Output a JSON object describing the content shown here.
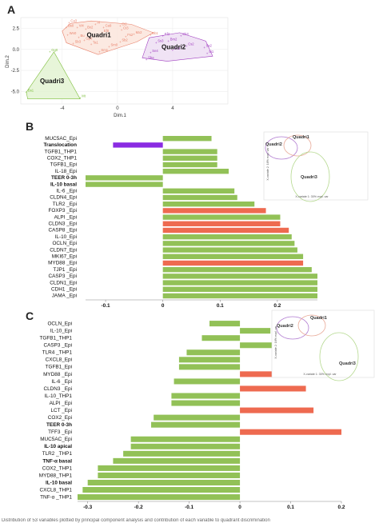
{
  "panel_labels": {
    "a": "A",
    "b": "B",
    "c": "C"
  },
  "caption": "Distribution of 53 variables plotted by principal component analysis and contribution of each variable to quadrant discrimination",
  "chart_data": [
    {
      "type": "scatter",
      "panel": "A",
      "xlabel": "Dim.1",
      "ylabel": "Dim.2",
      "xticks": [
        "-4",
        "0",
        "4"
      ],
      "yticks": [
        "2.5",
        "0.0",
        "-2.5",
        "-5.0"
      ],
      "xlim": [
        -7,
        8
      ],
      "ylim": [
        -6.5,
        3.8
      ],
      "groups": [
        {
          "name": "Quadri1",
          "color": "#e8836d",
          "fill": "#fbe3da",
          "hull": [
            [
              -3.4,
              3.1
            ],
            [
              -1.9,
              3.4
            ],
            [
              1.0,
              3.0
            ],
            [
              2.6,
              2.0
            ],
            [
              1.4,
              0.9
            ],
            [
              -1.4,
              -0.6
            ],
            [
              -3.7,
              0.8
            ],
            [
              -4.0,
              2.2
            ]
          ],
          "points": [
            [
              -3.5,
              3.2,
              "Ca3"
            ],
            [
              -3.7,
              2.6,
              "Bs0"
            ],
            [
              -2.9,
              2.6,
              "Vi4"
            ],
            [
              -2.3,
              2.4,
              "Bx2"
            ],
            [
              -1.6,
              3.0,
              "Ai"
            ],
            [
              -1.0,
              2.6,
              "Ca9"
            ],
            [
              0.2,
              2.8,
              "Ci2"
            ],
            [
              0.3,
              2.3,
              "Ct3"
            ],
            [
              -1.1,
              2.0,
              "Ef0"
            ],
            [
              -3.6,
              1.7,
              "Wn0"
            ],
            [
              -2.8,
              1.4,
              "Bu"
            ],
            [
              -2.4,
              1.1,
              "Gp0"
            ],
            [
              -3.2,
              0.7,
              "Sb3"
            ],
            [
              -1.9,
              0.6,
              "Ta1"
            ],
            [
              1.2,
              1.8,
              "Mx2"
            ],
            [
              2.4,
              1.7,
              "Bb1"
            ],
            [
              0.6,
              1.5,
              "Fs2"
            ],
            [
              0.2,
              0.9,
              "Sb2"
            ],
            [
              -0.6,
              0.3,
              "Sm0"
            ],
            [
              -1.3,
              -0.3,
              "Sm1"
            ]
          ]
        },
        {
          "name": "Quadri2",
          "color": "#a03ec0",
          "fill": "#ecdcf3",
          "hull": [
            [
              2.3,
              1.4
            ],
            [
              4.5,
              2.0
            ],
            [
              6.4,
              1.0
            ],
            [
              6.9,
              -0.8
            ],
            [
              3.6,
              -1.4
            ],
            [
              1.8,
              -1.0
            ]
          ],
          "points": [
            [
              3.3,
              1.6,
              "Ef3"
            ],
            [
              4.6,
              1.6,
              "Ck3"
            ],
            [
              3.7,
              1.0,
              "Bm2"
            ],
            [
              2.8,
              0.8,
              "Ss3"
            ],
            [
              5.0,
              0.4,
              "Cs2"
            ],
            [
              6.3,
              0.2,
              "Ss2"
            ],
            [
              4.0,
              -0.1,
              "Sk3"
            ],
            [
              2.4,
              -0.4,
              "Se4"
            ],
            [
              6.5,
              -0.5,
              "Si1"
            ],
            [
              2.1,
              -1.2,
              "Sha"
            ]
          ]
        },
        {
          "name": "Quadri3",
          "color": "#7fbf3f",
          "fill": "#e1f2cf",
          "hull": [
            [
              -6.6,
              -5.1
            ],
            [
              -4.6,
              -0.3
            ],
            [
              -2.7,
              -5.9
            ],
            [
              -6.5,
              -5.9
            ]
          ],
          "points": [
            [
              -4.9,
              -0.3,
              "Gg0"
            ],
            [
              -6.6,
              -5.1,
              "Bs1"
            ],
            [
              -2.7,
              -5.8,
              "Mt"
            ]
          ]
        }
      ]
    },
    {
      "type": "bar",
      "panel": "B",
      "orientation": "horizontal",
      "categories": [
        "MUC5AC_Epi",
        "Translocation",
        "TGFB1_THP1",
        "COX2_THP1",
        "TGFB1_Epi",
        "IL-18_Epi",
        "TEER 0-3h",
        "IL-10 basal",
        "IL-6 _Epi",
        "CLDN4_Epi",
        "TLR2 _Epi",
        "FOXP3 _Epi",
        "ALPI _Epi",
        "CLDN3 _Epi",
        "CASP8 _Epi",
        "IL-10_Epi",
        "OCLN_Epi",
        "CLDN7_Epi",
        "MKI67_Epi",
        "MYD88 _Epi",
        "TJP1 _Epi",
        "CASP3 _Epi",
        "CLDN1_Epi",
        "CDH1 _Epi",
        "JAMA _Epi"
      ],
      "bold": [
        "Translocation",
        "TEER 0-3h",
        "IL-10 basal"
      ],
      "values": [
        0.085,
        -0.087,
        0.095,
        0.095,
        0.095,
        0.115,
        -0.135,
        -0.135,
        0.125,
        0.13,
        0.16,
        0.18,
        0.205,
        0.205,
        0.22,
        0.225,
        0.23,
        0.235,
        0.245,
        0.245,
        0.26,
        0.27,
        0.27,
        0.27,
        0.27
      ],
      "colors": [
        "#92c157",
        "#8a2be2",
        "#92c157",
        "#92c157",
        "#92c157",
        "#92c157",
        "#92c157",
        "#92c157",
        "#92c157",
        "#92c157",
        "#92c157",
        "#ee6a50",
        "#92c157",
        "#ee6a50",
        "#ee6a50",
        "#92c157",
        "#92c157",
        "#92c157",
        "#92c157",
        "#ee6a50",
        "#92c157",
        "#92c157",
        "#92c157",
        "#92c157",
        "#92c157"
      ],
      "xticks": [
        "-0.1",
        "0",
        "0.1",
        "0.2"
      ],
      "xlim": [
        -0.135,
        0.27
      ]
    },
    {
      "type": "bar",
      "panel": "C",
      "orientation": "horizontal",
      "categories": [
        "OCLN_Epi",
        "IL-10_Epi",
        "TGFB1_THP1",
        "CASP3 _Epi",
        "TLR4 _THP1",
        "CXCL8_Epi",
        "TGFB1_Epi",
        "MYD88 _Epi",
        "IL-6 _Epi",
        "CLDN3 _Epi",
        "IL-10_THP1",
        "ALPI _Epi",
        "LCT _Epi",
        "COX2_Epi",
        "TEER 0-3h",
        "TFF3 _Epi",
        "MUC5AC_Epi",
        "IL-10 apical",
        "TLR2 _THP1",
        "TNF-α basal",
        "COX2_THP1",
        "MYD88_THP1",
        "IL-10 basal",
        "CXCL8_THP1",
        "TNF-α _THP1"
      ],
      "bold": [
        "TEER 0-3h",
        "IL-10 apical",
        "TNF-α basal",
        "IL-10 basal"
      ],
      "values": [
        -0.06,
        0.06,
        -0.075,
        0.075,
        -0.105,
        -0.12,
        -0.12,
        0.125,
        -0.13,
        0.13,
        -0.135,
        -0.135,
        0.145,
        -0.17,
        -0.175,
        0.2,
        -0.215,
        -0.215,
        -0.23,
        -0.25,
        -0.28,
        -0.28,
        -0.3,
        -0.31,
        -0.32
      ],
      "colors": [
        "#92c157",
        "#92c157",
        "#92c157",
        "#92c157",
        "#92c157",
        "#92c157",
        "#92c157",
        "#ee6a50",
        "#92c157",
        "#ee6a50",
        "#92c157",
        "#92c157",
        "#ee6a50",
        "#92c157",
        "#92c157",
        "#ee6a50",
        "#92c157",
        "#92c157",
        "#92c157",
        "#92c157",
        "#92c157",
        "#92c157",
        "#92c157",
        "#92c157",
        "#92c157"
      ],
      "xticks": [
        "-0.3",
        "-0.2",
        "-0.1",
        "0",
        "0.1",
        "0.2"
      ],
      "xlim": [
        -0.32,
        0.2
      ]
    }
  ],
  "insets": [
    {
      "panel": "B",
      "xlabel": "X-variate 1: 30% expl. var",
      "ylabel": "X-variate 2: 16% expl. var",
      "labels": [
        "Quadri1",
        "Quadri2",
        "Quadri3"
      ]
    },
    {
      "panel": "C",
      "xlabel": "X-variate 1: 30% expl. var",
      "ylabel": "X-variate 2: 16% expl. var",
      "labels": [
        "Quadri1",
        "Quadri2",
        "Quadri3"
      ]
    }
  ]
}
